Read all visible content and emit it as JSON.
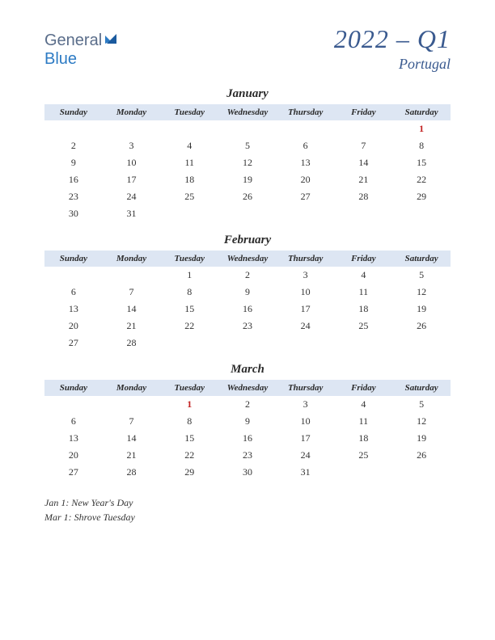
{
  "logo": {
    "text1": "General",
    "text2": "Blue"
  },
  "title": {
    "main": "2022 – Q1",
    "sub": "Portugal"
  },
  "colors": {
    "header_bg": "#dde6f3",
    "title_color": "#3a5a8f",
    "holiday_color": "#c22020",
    "text_color": "#333333",
    "logo_general": "#5a6d8a",
    "logo_blue": "#2d7bc4"
  },
  "day_headers": [
    "Sunday",
    "Monday",
    "Tuesday",
    "Wednesday",
    "Thursday",
    "Friday",
    "Saturday"
  ],
  "months": [
    {
      "name": "January",
      "weeks": [
        [
          "",
          "",
          "",
          "",
          "",
          "",
          "1"
        ],
        [
          "2",
          "3",
          "4",
          "5",
          "6",
          "7",
          "8"
        ],
        [
          "9",
          "10",
          "11",
          "12",
          "13",
          "14",
          "15"
        ],
        [
          "16",
          "17",
          "18",
          "19",
          "20",
          "21",
          "22"
        ],
        [
          "23",
          "24",
          "25",
          "26",
          "27",
          "28",
          "29"
        ],
        [
          "30",
          "31",
          "",
          "",
          "",
          "",
          ""
        ]
      ],
      "holidays": [
        "1"
      ]
    },
    {
      "name": "February",
      "weeks": [
        [
          "",
          "",
          "1",
          "2",
          "3",
          "4",
          "5"
        ],
        [
          "6",
          "7",
          "8",
          "9",
          "10",
          "11",
          "12"
        ],
        [
          "13",
          "14",
          "15",
          "16",
          "17",
          "18",
          "19"
        ],
        [
          "20",
          "21",
          "22",
          "23",
          "24",
          "25",
          "26"
        ],
        [
          "27",
          "28",
          "",
          "",
          "",
          "",
          ""
        ]
      ],
      "holidays": []
    },
    {
      "name": "March",
      "weeks": [
        [
          "",
          "",
          "1",
          "2",
          "3",
          "4",
          "5"
        ],
        [
          "6",
          "7",
          "8",
          "9",
          "10",
          "11",
          "12"
        ],
        [
          "13",
          "14",
          "15",
          "16",
          "17",
          "18",
          "19"
        ],
        [
          "20",
          "21",
          "22",
          "23",
          "24",
          "25",
          "26"
        ],
        [
          "27",
          "28",
          "29",
          "30",
          "31",
          "",
          ""
        ]
      ],
      "holidays": [
        "1"
      ]
    }
  ],
  "holiday_list": [
    "Jan 1: New Year's Day",
    "Mar 1: Shrove Tuesday"
  ]
}
